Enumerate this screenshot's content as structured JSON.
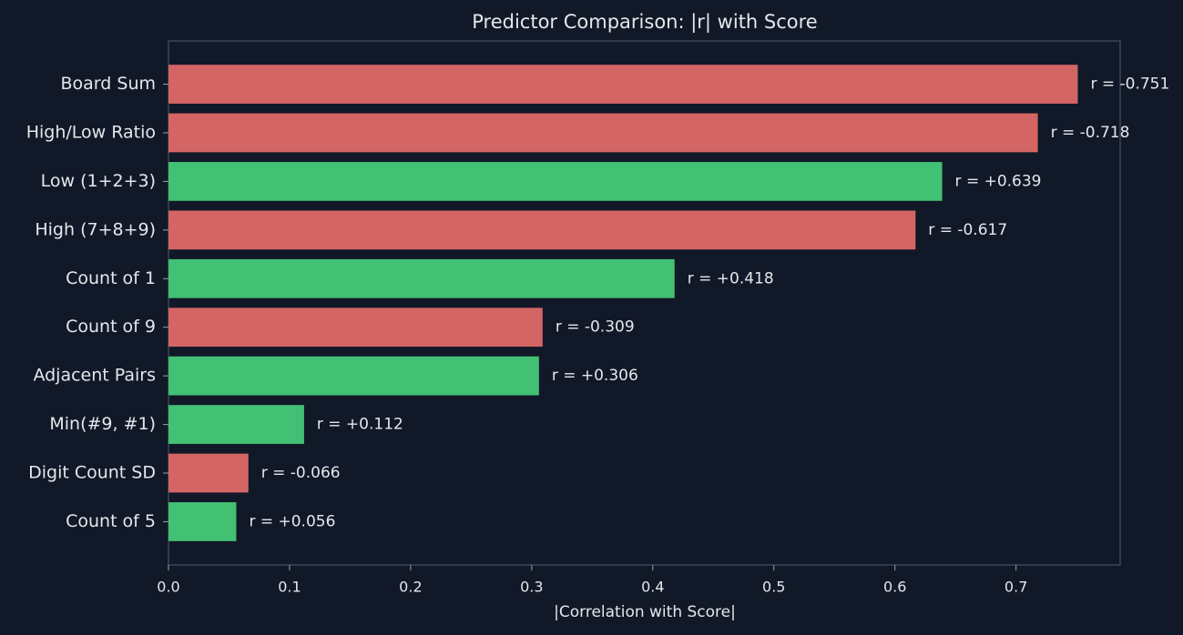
{
  "chart_data": {
    "type": "barh",
    "title": "Predictor Comparison: |r| with Score",
    "x_label": "|Correlation with Score|",
    "categories": [
      "Board Sum",
      "High/Low Ratio",
      "Low (1+2+3)",
      "High (7+8+9)",
      "Count of 1",
      "Count of 9",
      "Adjacent Pairs",
      "Min(#9, #1)",
      "Digit Count SD",
      "Count of 5"
    ],
    "values": [
      0.751,
      0.718,
      0.639,
      0.617,
      0.418,
      0.309,
      0.306,
      0.112,
      0.066,
      0.056
    ],
    "value_labels": [
      "r = -0.751",
      "r = -0.718",
      "r = +0.639",
      "r = -0.617",
      "r = +0.418",
      "r = -0.309",
      "r = +0.306",
      "r = +0.112",
      "r = -0.066",
      "r = +0.056"
    ],
    "colors": [
      "#d46565",
      "#d46565",
      "#42c174",
      "#d46565",
      "#42c174",
      "#d46565",
      "#42c174",
      "#42c174",
      "#d46565",
      "#42c174"
    ],
    "xlim": [
      0,
      0.786
    ],
    "xticks": [
      {
        "value": 0,
        "label": "0.0"
      },
      {
        "value": 0.1,
        "label": "0.1"
      },
      {
        "value": 0.2,
        "label": "0.2"
      },
      {
        "value": 0.3,
        "label": "0.3"
      },
      {
        "value": 0.4,
        "label": "0.4"
      },
      {
        "value": 0.5,
        "label": "0.5"
      },
      {
        "value": 0.6,
        "label": "0.6"
      },
      {
        "value": 0.7,
        "label": "0.7"
      }
    ],
    "grid": false
  }
}
